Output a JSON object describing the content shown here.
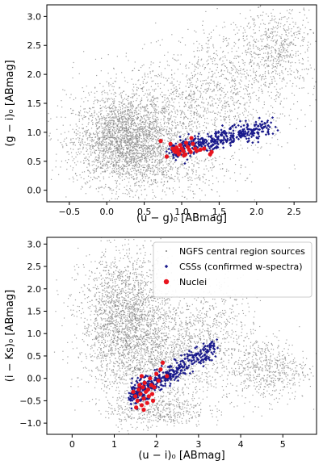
{
  "chart_data": [
    {
      "type": "scatter",
      "xlabel": "(u − g)₀ [ABmag]",
      "ylabel": "(g − i)₀ [ABmag]",
      "xlim": [
        -0.8,
        2.8
      ],
      "ylim": [
        -0.2,
        3.2
      ],
      "xticks": [
        -0.5,
        0.0,
        0.5,
        1.0,
        1.5,
        2.0,
        2.5
      ],
      "xtick_labels": [
        "−0.5",
        "0.0",
        "0.5",
        "1.0",
        "1.5",
        "2.0",
        "2.5"
      ],
      "yticks": [
        0.0,
        0.5,
        1.0,
        1.5,
        2.0,
        2.5,
        3.0
      ],
      "ytick_labels": [
        "0.0",
        "0.5",
        "1.0",
        "1.5",
        "2.0",
        "2.5",
        "3.0"
      ],
      "series": [
        {
          "color": "#808080",
          "regions": [
            {
              "cx": 0.25,
              "cy": 0.85,
              "sx": 0.35,
              "sy": 0.38,
              "n": 2600
            },
            {
              "cx": 0.9,
              "cy": 1.4,
              "sx": 0.6,
              "sy": 0.45,
              "n": 900
            },
            {
              "cx": 1.7,
              "cy": 1.9,
              "sx": 0.45,
              "sy": 0.5,
              "n": 700
            },
            {
              "cx": 2.3,
              "cy": 2.5,
              "sx": 0.25,
              "sy": 0.35,
              "n": 500
            },
            {
              "cx": 0.9,
              "cy": 0.35,
              "sx": 0.45,
              "sy": 0.25,
              "n": 400
            }
          ]
        },
        {
          "color": "#1a1a8c",
          "trend": {
            "x_start": 0.9,
            "x_end": 2.2,
            "y_start": 0.68,
            "y_end": 1.12,
            "scatter_y": 0.08,
            "n": 450
          }
        },
        {
          "color": "#e8141e",
          "points": [
            [
              0.72,
              0.85
            ],
            [
              0.85,
              0.8
            ],
            [
              0.88,
              0.72
            ],
            [
              0.9,
              0.68
            ],
            [
              0.92,
              0.66
            ],
            [
              0.95,
              0.7
            ],
            [
              0.97,
              0.64
            ],
            [
              1.0,
              0.72
            ],
            [
              1.02,
              0.68
            ],
            [
              1.05,
              0.62
            ],
            [
              1.08,
              0.75
            ],
            [
              1.1,
              0.7
            ],
            [
              1.12,
              0.66
            ],
            [
              1.15,
              0.8
            ],
            [
              1.18,
              0.72
            ],
            [
              1.2,
              0.68
            ],
            [
              0.98,
              0.78
            ],
            [
              1.03,
              0.6
            ],
            [
              0.93,
              0.74
            ],
            [
              1.25,
              0.7
            ],
            [
              1.3,
              0.72
            ],
            [
              1.38,
              0.62
            ],
            [
              1.4,
              0.66
            ],
            [
              0.8,
              0.58
            ],
            [
              1.06,
              0.82
            ],
            [
              1.13,
              0.9
            ],
            [
              0.96,
              0.62
            ]
          ]
        }
      ]
    },
    {
      "type": "scatter",
      "xlabel": "(u − i)₀ [ABmag]",
      "ylabel": "(i − Ks)₀ [ABmag]",
      "xlim": [
        -0.6,
        5.8
      ],
      "ylim": [
        -1.25,
        3.15
      ],
      "xticks": [
        0,
        1,
        2,
        3,
        4,
        5
      ],
      "xtick_labels": [
        "0",
        "1",
        "2",
        "3",
        "4",
        "5"
      ],
      "yticks": [
        -1.0,
        -0.5,
        0.0,
        0.5,
        1.0,
        1.5,
        2.0,
        2.5,
        3.0
      ],
      "ytick_labels": [
        "−1.0",
        "−0.5",
        "0.0",
        "0.5",
        "1.0",
        "1.5",
        "2.0",
        "2.5",
        "3.0"
      ],
      "legend": {
        "placement": "top-right",
        "entries": [
          {
            "label": "NGFS central region sources",
            "color": "#808080",
            "marker": "dot-small"
          },
          {
            "label": "CSSs (confirmed w-spectra)",
            "color": "#1a1a8c",
            "marker": "diamond"
          },
          {
            "label": "Nuclei",
            "color": "#e8141e",
            "marker": "circle"
          }
        ]
      },
      "series": [
        {
          "color": "#808080",
          "regions": [
            {
              "cx": 1.3,
              "cy": 1.3,
              "sx": 0.55,
              "sy": 0.75,
              "n": 2400
            },
            {
              "cx": 2.3,
              "cy": 0.4,
              "sx": 0.7,
              "sy": 0.45,
              "n": 900
            },
            {
              "cx": 3.2,
              "cy": 1.2,
              "sx": 0.6,
              "sy": 0.5,
              "n": 500
            },
            {
              "cx": 4.6,
              "cy": 0.2,
              "sx": 0.5,
              "sy": 0.35,
              "n": 600
            },
            {
              "cx": 2.0,
              "cy": -0.7,
              "sx": 0.6,
              "sy": 0.2,
              "n": 500
            }
          ]
        },
        {
          "color": "#1a1a8c",
          "trend": {
            "x_start": 1.4,
            "x_end": 3.4,
            "y_start": -0.4,
            "y_end": 0.7,
            "scatter_y": 0.12,
            "n": 450
          }
        },
        {
          "color": "#e8141e",
          "points": [
            [
              1.45,
              -0.3
            ],
            [
              1.5,
              -0.4
            ],
            [
              1.55,
              -0.5
            ],
            [
              1.58,
              -0.25
            ],
            [
              1.6,
              -0.15
            ],
            [
              1.62,
              -0.35
            ],
            [
              1.65,
              -0.6
            ],
            [
              1.68,
              -0.2
            ],
            [
              1.7,
              -0.45
            ],
            [
              1.72,
              -0.1
            ],
            [
              1.75,
              -0.3
            ],
            [
              1.78,
              -0.55
            ],
            [
              1.8,
              -0.25
            ],
            [
              1.82,
              -0.4
            ],
            [
              1.85,
              0.0
            ],
            [
              1.88,
              -0.15
            ],
            [
              1.9,
              -0.35
            ],
            [
              1.92,
              -0.5
            ],
            [
              1.95,
              -0.2
            ],
            [
              2.0,
              0.1
            ],
            [
              2.05,
              -0.05
            ],
            [
              2.1,
              0.2
            ],
            [
              1.65,
              0.05
            ],
            [
              1.7,
              -0.7
            ],
            [
              2.15,
              0.35
            ],
            [
              1.52,
              -0.65
            ],
            [
              2.25,
              0.05
            ]
          ]
        }
      ]
    }
  ]
}
